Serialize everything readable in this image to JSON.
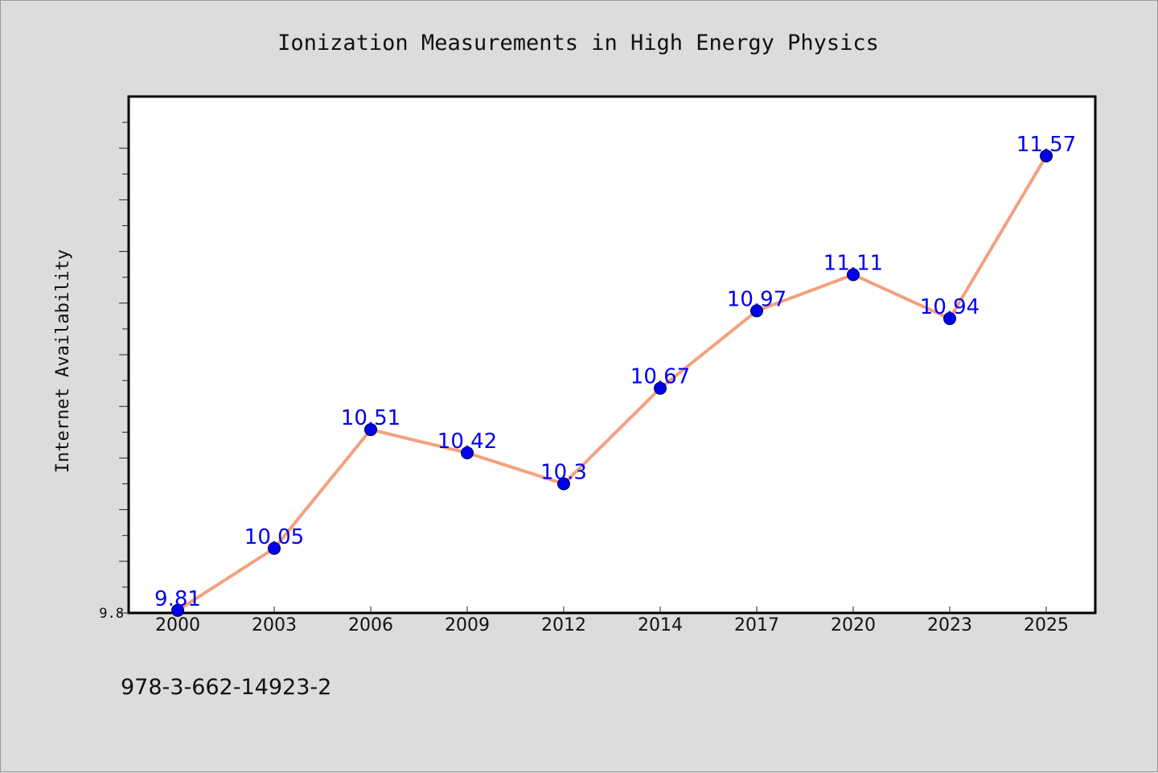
{
  "chart_data": {
    "type": "line",
    "title": "Ionization Measurements in High Energy Physics",
    "xlabel": "",
    "ylabel": "Internet Availability",
    "categories": [
      "2000",
      "2003",
      "2006",
      "2009",
      "2012",
      "2014",
      "2017",
      "2020",
      "2023",
      "2025"
    ],
    "series": [
      {
        "values": [
          9.81,
          10.05,
          10.51,
          10.42,
          10.3,
          10.67,
          10.97,
          11.11,
          10.94,
          11.57
        ],
        "labels": [
          "9.81",
          "10.05",
          "10.51",
          "10.42",
          "10.3",
          "10.67",
          "10.97",
          "11.11",
          "10.94",
          "11.57"
        ]
      }
    ],
    "ylim": [
      9.8,
      11.8
    ],
    "y_tick_labels": [
      "9.8"
    ],
    "grid": false,
    "legend": "none",
    "colors": {
      "line": "#f4a07e",
      "marker": "#0000ee",
      "data_label": "#0000ee",
      "plot_background": "#ffffff",
      "page_background": "#dcdcdc"
    }
  },
  "footer": {
    "isbn": "978-3-662-14923-2"
  }
}
